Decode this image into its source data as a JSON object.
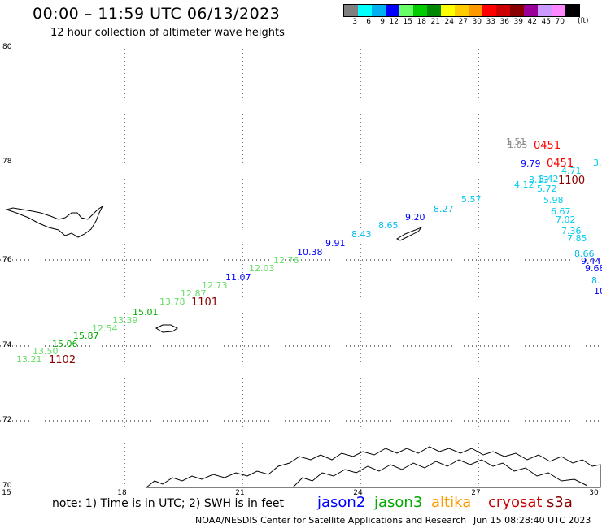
{
  "header": {
    "title": "00:00 – 11:59 UTC 06/13/2023",
    "subtitle": "12 hour collection of altimeter wave heights"
  },
  "legend": {
    "colors": [
      "#7f7f7f",
      "#00ffff",
      "#00b0f0",
      "#0000ff",
      "#66ff66",
      "#00cc00",
      "#008800",
      "#ffff00",
      "#ffcc00",
      "#ff9900",
      "#ff0000",
      "#cc0000",
      "#880000",
      "#990099",
      "#cc99ff",
      "#ff88ff",
      "#000000"
    ],
    "labels": [
      "3",
      "6",
      "9",
      "12",
      "15",
      "18",
      "21",
      "24",
      "27",
      "30",
      "33",
      "36",
      "39",
      "42",
      "45",
      "70"
    ],
    "unit": "(ft)"
  },
  "axes": {
    "lat_labels": [
      "80",
      "78",
      "76",
      "74",
      "72",
      "70"
    ],
    "lon_labels": [
      "15",
      "18",
      "21",
      "24",
      "27",
      "30"
    ]
  },
  "satellites": [
    {
      "name": "jason2",
      "color": "#0000ff"
    },
    {
      "name": "jason3",
      "color": "#00aa00"
    },
    {
      "name": "altika",
      "color": "#ff9900"
    },
    {
      "name": "cryosat",
      "color": "#cc0000"
    },
    {
      "name": "s3a",
      "color": "#880000"
    }
  ],
  "note": "note: 1) Time is in UTC; 2) SWH is in feet",
  "footer": {
    "center": "NOAA/NESDIS Center for Satellite Applications and Research",
    "timestamp": "Jun 15 08:28:40 UTC 2023"
  },
  "observations": [
    {
      "text": "13.21",
      "color": "#66dd66"
    },
    {
      "text": "13.50",
      "color": "#66dd66"
    },
    {
      "text": "15.06",
      "color": "#00aa00"
    },
    {
      "text": "15.87",
      "color": "#00aa00"
    },
    {
      "text": "12.54",
      "color": "#66dd66"
    },
    {
      "text": "13.39",
      "color": "#66dd66"
    },
    {
      "text": "15.01",
      "color": "#00aa00"
    },
    {
      "text": "13.78",
      "color": "#66dd66"
    },
    {
      "text": "12.87",
      "color": "#66dd66"
    },
    {
      "text": "12.73",
      "color": "#66dd66"
    },
    {
      "text": "11.07",
      "color": "#0000ff"
    },
    {
      "text": "12.03",
      "color": "#66dd66"
    },
    {
      "text": "12.76",
      "color": "#66dd66"
    },
    {
      "text": "10.38",
      "color": "#0000ff"
    },
    {
      "text": "9.91",
      "color": "#0000ff"
    },
    {
      "text": "8.43",
      "color": "#00bbee"
    },
    {
      "text": "8.65",
      "color": "#00bbee"
    },
    {
      "text": "9.20",
      "color": "#0000ff"
    },
    {
      "text": "8.27",
      "color": "#00bbee"
    },
    {
      "text": "5.57",
      "color": "#00ccee"
    },
    {
      "text": "1.51",
      "color": "#888888"
    },
    {
      "text": "1.05",
      "color": "#888888"
    },
    {
      "text": "9.79",
      "color": "#0000ff"
    },
    {
      "text": "4.71",
      "color": "#00ccee"
    },
    {
      "text": "3.",
      "color": "#00ccee"
    },
    {
      "text": "3.13",
      "color": "#00ccee"
    },
    {
      "text": "3.42",
      "color": "#00ccee"
    },
    {
      "text": "4.12",
      "color": "#00ccee"
    },
    {
      "text": "5.72",
      "color": "#00ccee"
    },
    {
      "text": "5.98",
      "color": "#00ccee"
    },
    {
      "text": "6.67",
      "color": "#00ccee"
    },
    {
      "text": "7.02",
      "color": "#00ccee"
    },
    {
      "text": "7.36",
      "color": "#00ccee"
    },
    {
      "text": "7.85",
      "color": "#00ccee"
    },
    {
      "text": "8.66",
      "color": "#00bbee"
    },
    {
      "text": "9.44",
      "color": "#0000ff"
    },
    {
      "text": "9.68",
      "color": "#0000ff"
    },
    {
      "text": "8.",
      "color": "#00bbee"
    },
    {
      "text": "10",
      "color": "#0000ff"
    }
  ],
  "time_labels": [
    {
      "text": "1102",
      "color": "#880000"
    },
    {
      "text": "1101",
      "color": "#880000"
    },
    {
      "text": "0451",
      "color": "#ff0000"
    },
    {
      "text": "0451",
      "color": "#ff0000"
    },
    {
      "text": "1100",
      "color": "#880000"
    }
  ]
}
